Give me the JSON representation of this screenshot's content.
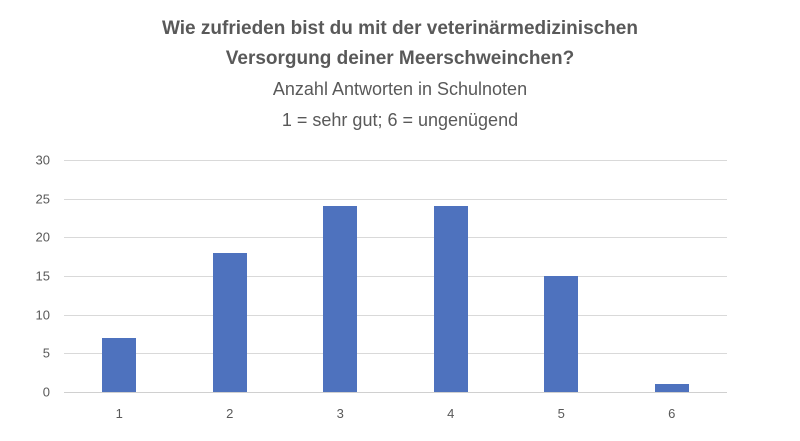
{
  "chart_data": {
    "type": "bar",
    "title": "Wie zufrieden bist du mit der veterinärmedizinischen Versorgung deiner Meerschweinchen?",
    "title_lines": [
      "Wie zufrieden bist du mit der veterinärmedizinischen",
      "Versorgung deiner Meerschweinchen?"
    ],
    "subtitle_lines": [
      "Anzahl Antworten in Schulnoten",
      "1 = sehr gut; 6 = ungenügend"
    ],
    "categories": [
      "1",
      "2",
      "3",
      "4",
      "5",
      "6"
    ],
    "values": [
      7,
      18,
      24,
      24,
      15,
      1
    ],
    "xlabel": "",
    "ylabel": "",
    "ylim": [
      0,
      30
    ],
    "yticks": [
      "0",
      "5",
      "10",
      "15",
      "20",
      "25",
      "30"
    ],
    "grid": true,
    "legend": null,
    "bar_color": "#4e72be"
  }
}
